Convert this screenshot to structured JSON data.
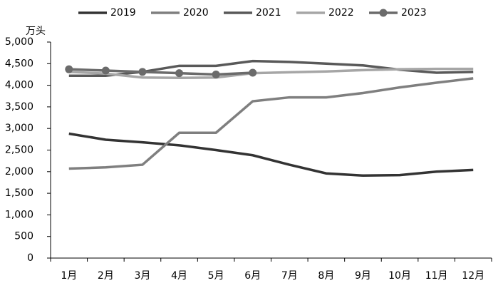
{
  "chart_data": {
    "type": "line",
    "y_unit": "万头",
    "categories": [
      "1月",
      "2月",
      "3月",
      "4月",
      "5月",
      "6月",
      "7月",
      "8月",
      "9月",
      "10月",
      "11月",
      "12月"
    ],
    "series": [
      {
        "name": "2019",
        "color": "#333333",
        "values": [
          2880,
          2740,
          2680,
          2610,
          2500,
          2380,
          2160,
          1960,
          1910,
          1920,
          2000,
          2040
        ]
      },
      {
        "name": "2020",
        "color": "#7f7f7f",
        "values": [
          2070,
          2100,
          2160,
          2900,
          2900,
          3630,
          3720,
          3720,
          3820,
          3950,
          4060,
          4160
        ]
      },
      {
        "name": "2021",
        "color": "#595959",
        "values": [
          4220,
          4220,
          4310,
          4450,
          4450,
          4560,
          4540,
          4500,
          4460,
          4360,
          4290,
          4310
        ]
      },
      {
        "name": "2022",
        "color": "#a6a6a6",
        "values": [
          4310,
          4270,
          4180,
          4170,
          4180,
          4280,
          4300,
          4320,
          4350,
          4370,
          4380,
          4380
        ]
      },
      {
        "name": "2023",
        "color": "#6b6b6b",
        "marker": "circle",
        "values": [
          4370,
          4340,
          4310,
          4280,
          4250,
          4290,
          null,
          null,
          null,
          null,
          null,
          null
        ]
      }
    ],
    "ylim": [
      0,
      5000
    ],
    "yticks": [
      0,
      500,
      {
        "value": 1000,
        "label": "1,000"
      },
      {
        "value": 1500,
        "label": "1,500"
      },
      {
        "value": 2000,
        "label": "2,000"
      },
      {
        "value": 2500,
        "label": "2,500"
      },
      {
        "value": 3000,
        "label": "3,000"
      },
      {
        "value": 3500,
        "label": "3,500"
      },
      {
        "value": 4000,
        "label": "4,000"
      },
      {
        "value": 4500,
        "label": "4,500"
      },
      {
        "value": 5000,
        "label": "5,000"
      }
    ],
    "legend": "top"
  }
}
